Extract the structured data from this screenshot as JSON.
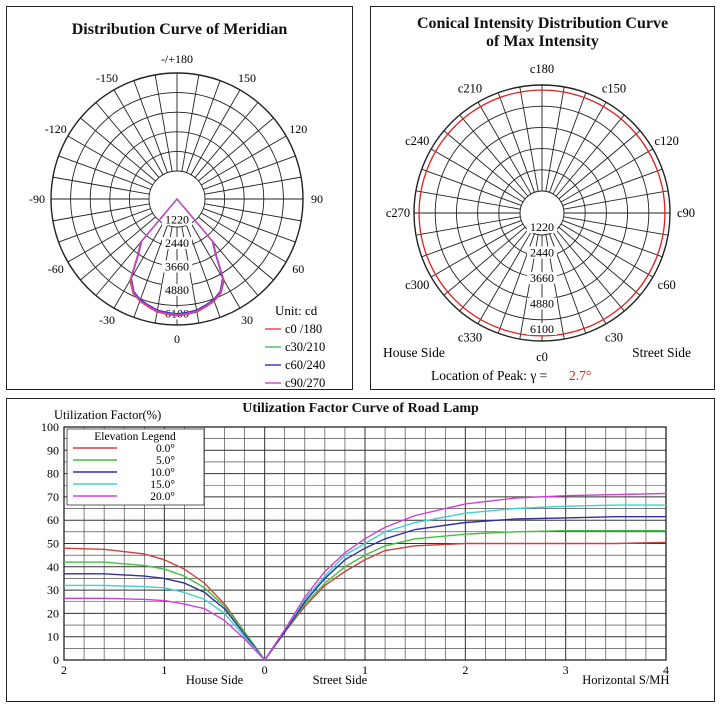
{
  "chart_data": [
    {
      "type": "polar",
      "title": "Distribution Curve of  Meridian",
      "angle_labels": [
        {
          "text": "-/+180",
          "deg": 180
        },
        {
          "text": "150",
          "deg": 150
        },
        {
          "text": "-150",
          "deg": -150
        },
        {
          "text": "120",
          "deg": 120
        },
        {
          "text": "-120",
          "deg": -120
        },
        {
          "text": "90",
          "deg": 90
        },
        {
          "text": "-90",
          "deg": -90
        },
        {
          "text": "60",
          "deg": 60
        },
        {
          "text": "-60",
          "deg": -60
        },
        {
          "text": "30",
          "deg": 30
        },
        {
          "text": "-30",
          "deg": -30
        },
        {
          "text": "0",
          "deg": 0
        }
      ],
      "radial_labels": [
        "1220",
        "2440",
        "3660",
        "4880",
        "6100"
      ],
      "radial_max": 6100,
      "unit": "Unit: cd",
      "legend": [
        {
          "name": "c0 /180",
          "color": "#e04040"
        },
        {
          "name": "c30/210",
          "color": "#40c060"
        },
        {
          "name": "c60/240",
          "color": "#3030c0"
        },
        {
          "name": "c90/270",
          "color": "#d040d0"
        }
      ],
      "series": [
        {
          "name": "c0 /180",
          "color": "#e04040",
          "theta": [
            -40,
            -35,
            -30,
            -25,
            -20,
            -15,
            -10,
            -5,
            0,
            5,
            10,
            15,
            20,
            25,
            30,
            35,
            40
          ],
          "values": [
            2900,
            3500,
            4800,
            5300,
            5550,
            5700,
            5850,
            5900,
            5950,
            5900,
            5850,
            5700,
            5550,
            5300,
            4800,
            3500,
            2900
          ]
        },
        {
          "name": "c30/210",
          "color": "#40c060",
          "theta": [
            -40,
            -35,
            -30,
            -25,
            -20,
            -15,
            -10,
            -5,
            0,
            5,
            10,
            15,
            20,
            25,
            30,
            35,
            40
          ],
          "values": [
            2850,
            3450,
            4700,
            5250,
            5500,
            5650,
            5800,
            5850,
            5900,
            5850,
            5800,
            5650,
            5500,
            5250,
            4700,
            3450,
            2850
          ]
        },
        {
          "name": "c60/240",
          "color": "#3030c0",
          "theta": [
            -40,
            -35,
            -30,
            -25,
            -20,
            -15,
            -10,
            -5,
            0,
            5,
            10,
            15,
            20,
            25,
            30,
            35,
            40
          ],
          "values": [
            2800,
            3400,
            4650,
            5200,
            5450,
            5600,
            5750,
            5800,
            5850,
            5800,
            5750,
            5600,
            5450,
            5200,
            4650,
            3400,
            2800
          ]
        },
        {
          "name": "c90/270",
          "color": "#d040d0",
          "theta": [
            -40,
            -35,
            -30,
            -25,
            -20,
            -15,
            -10,
            -5,
            0,
            5,
            10,
            15,
            20,
            25,
            30,
            35,
            40
          ],
          "values": [
            2850,
            3450,
            4700,
            5250,
            5500,
            5650,
            5800,
            5850,
            5900,
            5850,
            5800,
            5650,
            5500,
            5250,
            4700,
            3450,
            2850
          ]
        }
      ]
    },
    {
      "type": "polar",
      "title": "Conical Intensity Distribution Curve\nof  Max Intensity",
      "angle_labels": [
        {
          "text": "c180",
          "deg": 0
        },
        {
          "text": "c150",
          "deg": 30
        },
        {
          "text": "c120",
          "deg": 60
        },
        {
          "text": "c90",
          "deg": 90
        },
        {
          "text": "c60",
          "deg": 120
        },
        {
          "text": "c30",
          "deg": 150
        },
        {
          "text": "c0",
          "deg": 180
        },
        {
          "text": "c330",
          "deg": 210
        },
        {
          "text": "c300",
          "deg": 240
        },
        {
          "text": "c270",
          "deg": 270
        },
        {
          "text": "c240",
          "deg": 300
        },
        {
          "text": "c210",
          "deg": 330
        }
      ],
      "radial_labels": [
        "1220",
        "2440",
        "3660",
        "4880",
        "6100"
      ],
      "radial_max": 6100,
      "left_label": "House Side",
      "right_label": "Street Side",
      "peak_label": "Location of Peak:  γ  =",
      "peak_value": "2.7°",
      "series": [
        {
          "name": "max",
          "color": "#e02020",
          "value_constant": 5950
        }
      ]
    },
    {
      "type": "line",
      "title": "Utilization Factor Curve of  Road Lamp",
      "ylabel": "Utilization Factor(%)",
      "ylim": [
        0,
        100
      ],
      "yticks": [
        "0",
        "10",
        "20",
        "30",
        "40",
        "50",
        "60",
        "70",
        "80",
        "90",
        "100"
      ],
      "xticks": [
        {
          "text": "2",
          "x": -2
        },
        {
          "text": "1",
          "x": -1
        },
        {
          "text": "0",
          "x": 0
        },
        {
          "text": "1",
          "x": 1
        },
        {
          "text": "2",
          "x": 2
        },
        {
          "text": "3",
          "x": 3
        },
        {
          "text": "4",
          "x": 4
        }
      ],
      "xlim": [
        -2,
        4
      ],
      "house_side_label": "House Side",
      "street_side_label": "Street Side",
      "xlabel": "Horizontal  S/MH",
      "legend_title": "Elevation Legend",
      "series": [
        {
          "name": "0.0°",
          "color": "#d04040",
          "x": [
            -2,
            -1.6,
            -1.2,
            -1,
            -0.8,
            -0.6,
            -0.4,
            -0.2,
            0,
            0.2,
            0.4,
            0.6,
            0.8,
            1,
            1.2,
            1.5,
            2,
            2.5,
            3,
            3.5,
            4
          ],
          "values": [
            48,
            47.5,
            45.5,
            43,
            39,
            33,
            24,
            12,
            0,
            12,
            23,
            32,
            38,
            43,
            47,
            49,
            50,
            50,
            50,
            50,
            50.5
          ]
        },
        {
          "name": "5.0°",
          "color": "#40c040",
          "x": [
            -2,
            -1.6,
            -1.2,
            -1,
            -0.8,
            -0.6,
            -0.4,
            -0.2,
            0,
            0.2,
            0.4,
            0.6,
            0.8,
            1,
            1.2,
            1.5,
            2,
            2.5,
            3,
            3.5,
            4
          ],
          "values": [
            42,
            42,
            40.5,
            39,
            36,
            31,
            23,
            12,
            0,
            12,
            24,
            33,
            40,
            45,
            49,
            52,
            54,
            55,
            55.5,
            55.5,
            55.5
          ]
        },
        {
          "name": "10.0°",
          "color": "#3030a0",
          "x": [
            -2,
            -1.6,
            -1.2,
            -1,
            -0.8,
            -0.6,
            -0.4,
            -0.2,
            0,
            0.2,
            0.4,
            0.6,
            0.8,
            1,
            1.2,
            1.5,
            2,
            2.5,
            3,
            3.5,
            4
          ],
          "values": [
            37,
            37,
            36,
            35,
            33,
            29,
            22,
            11,
            0,
            12,
            25,
            35,
            43,
            48,
            52,
            56,
            59,
            60.5,
            61,
            61.5,
            61.5
          ]
        },
        {
          "name": "15.0°",
          "color": "#40d0d0",
          "x": [
            -2,
            -1.6,
            -1.2,
            -1,
            -0.8,
            -0.6,
            -0.4,
            -0.2,
            0,
            0.2,
            0.4,
            0.6,
            0.8,
            1,
            1.2,
            1.5,
            2,
            2.5,
            3,
            3.5,
            4
          ],
          "values": [
            32,
            32,
            31.5,
            31,
            29,
            26,
            20,
            10,
            0,
            13,
            26,
            36,
            45,
            50,
            55,
            59,
            63,
            65,
            66,
            66.5,
            66.5
          ]
        },
        {
          "name": "20.0°",
          "color": "#d040d0",
          "x": [
            -2,
            -1.6,
            -1.2,
            -1,
            -0.8,
            -0.6,
            -0.4,
            -0.2,
            0,
            0.2,
            0.4,
            0.6,
            0.8,
            1,
            1.2,
            1.5,
            2,
            2.5,
            3,
            3.5,
            4
          ],
          "values": [
            26.5,
            26.5,
            26,
            25.5,
            24,
            22,
            17,
            9,
            0,
            13,
            27,
            38,
            46,
            52,
            57,
            62,
            67,
            69.5,
            70.5,
            71,
            71.5
          ]
        }
      ]
    }
  ]
}
